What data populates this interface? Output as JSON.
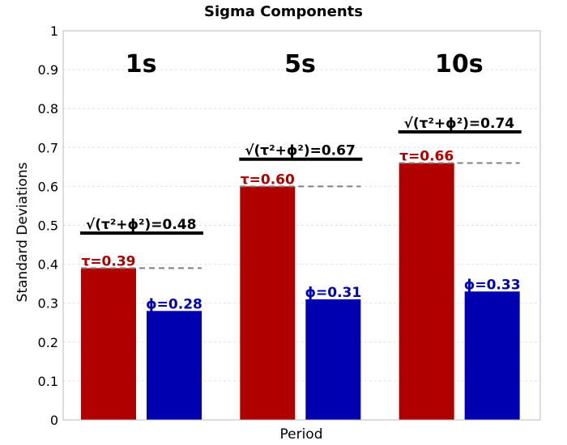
{
  "chart_data": {
    "type": "bar",
    "title": "Sigma Components",
    "xlabel": "Period",
    "ylabel": "Standard Deviations",
    "ylim": [
      0,
      1
    ],
    "yticks": [
      "0",
      "0.1",
      "0.2",
      "0.3",
      "0.4",
      "0.5",
      "0.6",
      "0.7",
      "0.8",
      "0.9",
      "1"
    ],
    "grid": true,
    "categories": [
      "1s",
      "5s",
      "10s"
    ],
    "series": [
      {
        "values": [
          0.39,
          0.6,
          0.66
        ],
        "color": "#b00000",
        "labels": [
          "τ=0.39",
          "τ=0.60",
          "τ=0.66"
        ]
      },
      {
        "values": [
          0.28,
          0.31,
          0.33
        ],
        "color": "#0000b0",
        "labels": [
          "ϕ=0.28",
          "ϕ=0.31",
          "ϕ=0.33"
        ]
      }
    ],
    "total_sigma": {
      "values": [
        0.48,
        0.67,
        0.74
      ],
      "labels": [
        "√(τ²+ϕ²)=0.48",
        "√(τ²+ϕ²)=0.67",
        "√(τ²+ϕ²)=0.74"
      ]
    }
  }
}
